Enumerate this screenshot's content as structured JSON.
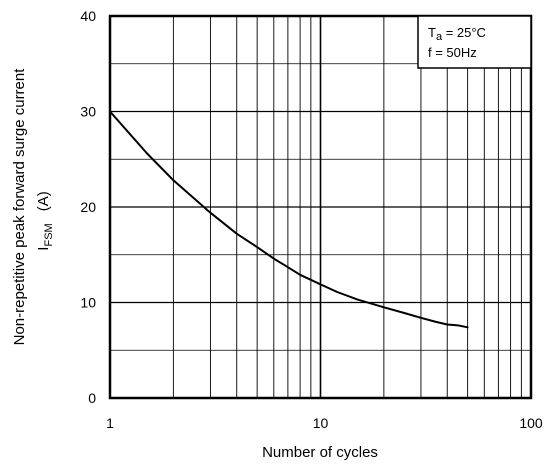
{
  "chart_data": {
    "type": "line",
    "title": "",
    "xlabel": "Number of cycles",
    "ylabel_line1": "Non-repetitive peak forward surge current",
    "ylabel_symbol": "I",
    "ylabel_symbol_sub": "FSM",
    "ylabel_unit": "(A)",
    "xscale": "log",
    "xlim": [
      1,
      100
    ],
    "ylim": [
      0,
      40
    ],
    "xticks": [
      1,
      10,
      100
    ],
    "xtick_labels": [
      "1",
      "10",
      "100"
    ],
    "yticks": [
      0,
      10,
      20,
      30,
      40
    ],
    "ytick_labels": [
      "0",
      "10",
      "20",
      "30",
      "40"
    ],
    "minor_y_grid_step": 5,
    "grid": true,
    "conditions": {
      "line1_symbol": "T",
      "line1_sub": "a",
      "line1_value": " = 25°C",
      "line2": "f = 50Hz",
      "placement": "top-right"
    },
    "series": [
      {
        "x": [
          1,
          1.5,
          2,
          3,
          4,
          5,
          6,
          7,
          8,
          10,
          12,
          15,
          20,
          25,
          30,
          35,
          40,
          45,
          50
        ],
        "y": [
          30,
          25.6,
          22.8,
          19.4,
          17.2,
          15.8,
          14.6,
          13.7,
          12.9,
          11.9,
          11.1,
          10.3,
          9.5,
          8.9,
          8.4,
          8.0,
          7.7,
          7.6,
          7.4
        ]
      }
    ]
  },
  "colors": {
    "line": "#000000",
    "grid": "#000000",
    "background": "#ffffff"
  }
}
